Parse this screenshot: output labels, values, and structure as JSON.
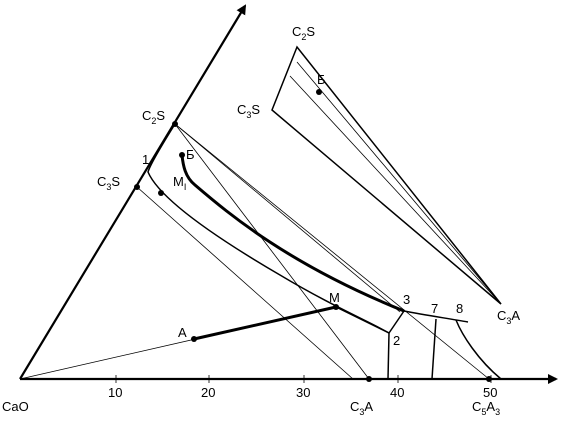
{
  "labels": {
    "c2s_top": {
      "main": "C",
      "sub": "2",
      "tail": "S"
    },
    "c3s_top": {
      "main": "C",
      "sub": "3",
      "tail": "S"
    },
    "b_top": "Б",
    "c3a_right": {
      "main": "C",
      "sub": "3",
      "tail": "A"
    },
    "c2s_main": {
      "main": "C",
      "sub": "2",
      "tail": "S"
    },
    "c3s_main": {
      "main": "C",
      "sub": "3",
      "tail": "S"
    },
    "b_main": "Б",
    "m1": {
      "main": "M",
      "sub": "I"
    },
    "one": "1",
    "m": "M",
    "a": "A",
    "two": "2",
    "three": "3",
    "seven": "7",
    "eight": "8",
    "cao": "CaO",
    "c3a_axis": {
      "main": "C",
      "sub": "3",
      "tail": "A"
    },
    "c5a3_axis": {
      "main": "C",
      "sub": "5",
      "tail": "A",
      "sub2": "3"
    }
  },
  "x_ticks": [
    "10",
    "20",
    "30",
    "40",
    "50"
  ]
}
